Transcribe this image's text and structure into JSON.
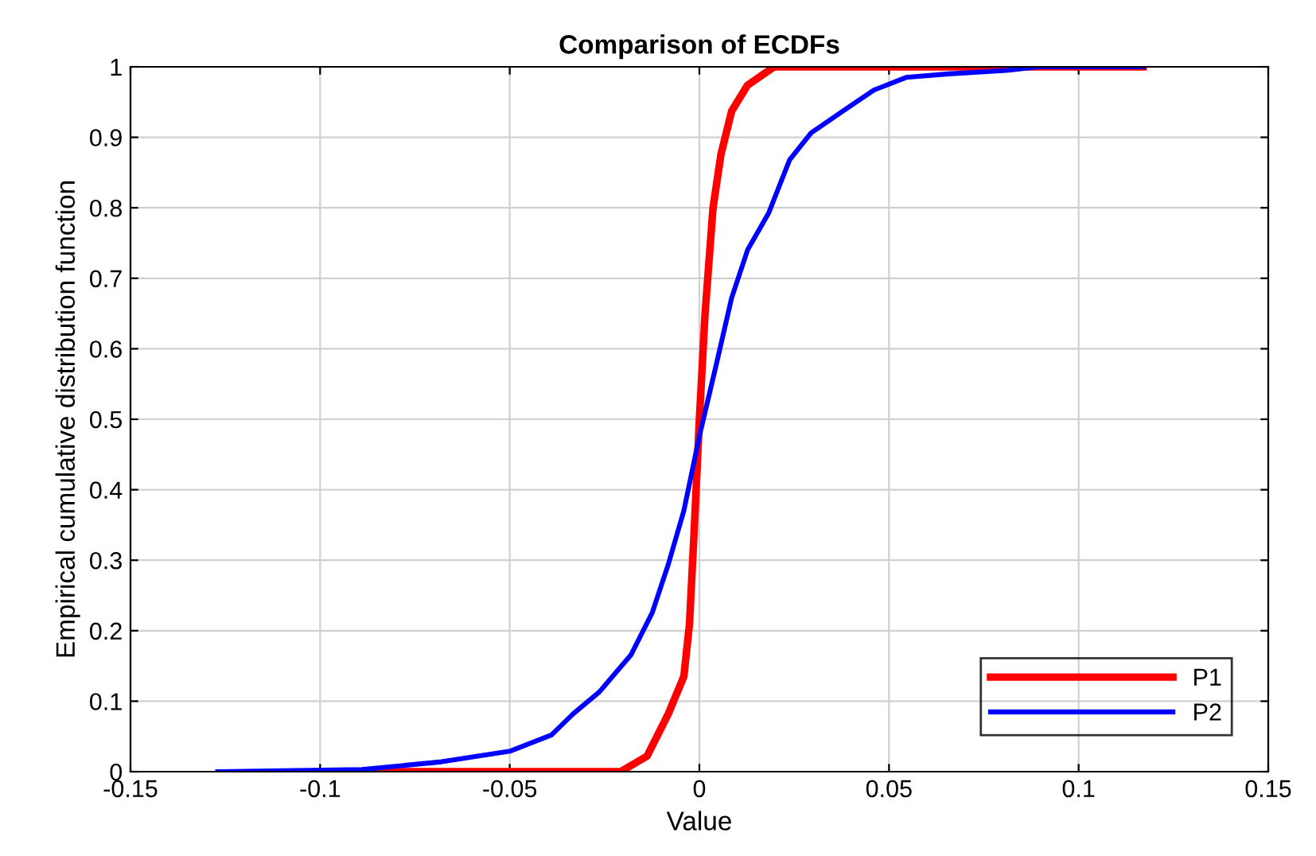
{
  "chart_data": {
    "type": "line",
    "title": "Comparison of ECDFs",
    "xlabel": "Value",
    "ylabel": "Empirical cumulative distribution function",
    "xlim": [
      -0.15,
      0.15
    ],
    "xticks": [
      -0.15,
      -0.1,
      -0.05,
      0,
      0.05,
      0.1,
      0.15
    ],
    "ylim": [
      0,
      1
    ],
    "yticks": [
      0,
      0.1,
      0.2,
      0.3,
      0.4,
      0.5,
      0.6,
      0.7,
      0.8,
      0.9,
      1
    ],
    "grid": true,
    "legend": "bottom right",
    "marker": "none",
    "line_style": "solid",
    "series": [
      {
        "name": "P1",
        "color": "#ff0000",
        "x": [
          -0.09,
          -0.0208,
          -0.0138,
          -0.0082,
          -0.0041,
          -0.0026,
          -0.0013,
          0,
          0.0015,
          0.0036,
          0.0057,
          0.0085,
          0.0127,
          0.0197,
          0.117
        ],
        "values": [
          0,
          0,
          0.022,
          0.082,
          0.135,
          0.21,
          0.35,
          0.5,
          0.65,
          0.8,
          0.876,
          0.937,
          0.974,
          1,
          1
        ]
      },
      {
        "name": "P2",
        "color": "#0000ff",
        "x": [
          -0.127,
          -0.089,
          -0.068,
          -0.05,
          -0.039,
          -0.0333,
          -0.0264,
          -0.018,
          -0.0124,
          -0.0082,
          -0.0041,
          0,
          0.0043,
          0.0085,
          0.0127,
          0.0183,
          0.0238,
          0.0294,
          0.0378,
          0.046,
          0.0545,
          0.0657,
          0.081,
          0.0895,
          0.117
        ],
        "values": [
          0,
          0.003,
          0.014,
          0.029,
          0.052,
          0.082,
          0.113,
          0.166,
          0.226,
          0.294,
          0.37,
          0.476,
          0.574,
          0.672,
          0.74,
          0.793,
          0.868,
          0.906,
          0.937,
          0.967,
          0.985,
          0.99,
          0.995,
          1,
          1
        ]
      }
    ]
  }
}
